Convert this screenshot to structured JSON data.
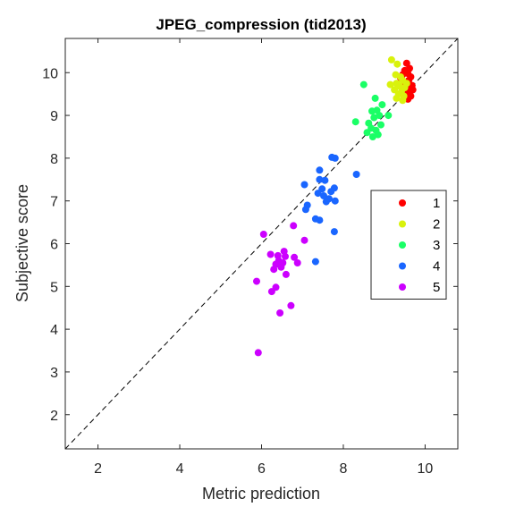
{
  "chart_data": {
    "type": "scatter",
    "title": "JPEG_compression (tid2013)",
    "xlabel": "Metric prediction",
    "ylabel": "Subjective score",
    "xlim": [
      1.2,
      10.8
    ],
    "ylim": [
      1.2,
      10.8
    ],
    "xticks": [
      2,
      4,
      6,
      8,
      10
    ],
    "yticks": [
      2,
      3,
      4,
      5,
      6,
      7,
      8,
      9,
      10
    ],
    "grid": false,
    "reference_line": "identity-dashed",
    "legend_position": "right",
    "series": [
      {
        "name": "1",
        "color": "#ff0000",
        "points": [
          [
            9.55,
            10.22
          ],
          [
            9.62,
            10.1
          ],
          [
            9.5,
            10.05
          ],
          [
            9.58,
            9.98
          ],
          [
            9.65,
            9.9
          ],
          [
            9.45,
            9.95
          ],
          [
            9.6,
            9.82
          ],
          [
            9.52,
            9.75
          ],
          [
            9.68,
            9.7
          ],
          [
            9.55,
            9.65
          ],
          [
            9.62,
            9.55
          ],
          [
            9.5,
            9.5
          ],
          [
            9.65,
            9.45
          ],
          [
            9.58,
            9.38
          ],
          [
            9.7,
            9.6
          ],
          [
            9.4,
            9.88
          ]
        ]
      },
      {
        "name": "2",
        "color": "#d9f20d",
        "points": [
          [
            9.18,
            10.3
          ],
          [
            9.32,
            10.2
          ],
          [
            9.28,
            9.95
          ],
          [
            9.4,
            9.9
          ],
          [
            9.45,
            9.82
          ],
          [
            9.3,
            9.75
          ],
          [
            9.15,
            9.72
          ],
          [
            9.38,
            9.68
          ],
          [
            9.5,
            9.65
          ],
          [
            9.25,
            9.6
          ],
          [
            9.42,
            9.55
          ],
          [
            9.35,
            9.5
          ],
          [
            9.48,
            9.45
          ],
          [
            9.3,
            9.4
          ],
          [
            9.45,
            9.35
          ],
          [
            9.55,
            9.75
          ]
        ]
      },
      {
        "name": "3",
        "color": "#1aff66",
        "points": [
          [
            8.5,
            9.72
          ],
          [
            8.78,
            9.4
          ],
          [
            8.95,
            9.25
          ],
          [
            8.82,
            9.12
          ],
          [
            8.7,
            9.1
          ],
          [
            8.88,
            9.0
          ],
          [
            8.75,
            8.95
          ],
          [
            8.3,
            8.85
          ],
          [
            8.62,
            8.82
          ],
          [
            8.92,
            8.78
          ],
          [
            8.68,
            8.7
          ],
          [
            8.8,
            8.65
          ],
          [
            8.58,
            8.6
          ],
          [
            8.85,
            8.55
          ],
          [
            8.72,
            8.5
          ],
          [
            9.1,
            9.0
          ]
        ]
      },
      {
        "name": "4",
        "color": "#1a66ff",
        "points": [
          [
            7.72,
            8.02
          ],
          [
            7.8,
            8.0
          ],
          [
            7.42,
            7.72
          ],
          [
            7.42,
            7.5
          ],
          [
            7.55,
            7.48
          ],
          [
            7.05,
            7.38
          ],
          [
            7.78,
            7.3
          ],
          [
            7.48,
            7.28
          ],
          [
            7.7,
            7.22
          ],
          [
            7.38,
            7.18
          ],
          [
            7.52,
            7.12
          ],
          [
            7.65,
            7.05
          ],
          [
            7.8,
            7.0
          ],
          [
            7.58,
            6.98
          ],
          [
            7.12,
            6.9
          ],
          [
            7.08,
            6.8
          ],
          [
            7.32,
            6.58
          ],
          [
            7.42,
            6.55
          ],
          [
            7.78,
            6.28
          ],
          [
            7.32,
            5.58
          ],
          [
            8.32,
            7.62
          ]
        ]
      },
      {
        "name": "5",
        "color": "#cc00ff",
        "points": [
          [
            6.05,
            6.22
          ],
          [
            6.78,
            6.42
          ],
          [
            7.05,
            6.08
          ],
          [
            6.55,
            5.82
          ],
          [
            6.22,
            5.75
          ],
          [
            6.4,
            5.72
          ],
          [
            6.58,
            5.7
          ],
          [
            6.8,
            5.68
          ],
          [
            6.42,
            5.6
          ],
          [
            6.52,
            5.55
          ],
          [
            6.88,
            5.55
          ],
          [
            6.35,
            5.52
          ],
          [
            6.48,
            5.45
          ],
          [
            6.3,
            5.4
          ],
          [
            6.6,
            5.28
          ],
          [
            5.88,
            5.12
          ],
          [
            6.35,
            4.98
          ],
          [
            6.25,
            4.88
          ],
          [
            6.72,
            4.55
          ],
          [
            6.45,
            4.38
          ],
          [
            5.92,
            3.45
          ]
        ]
      }
    ]
  }
}
